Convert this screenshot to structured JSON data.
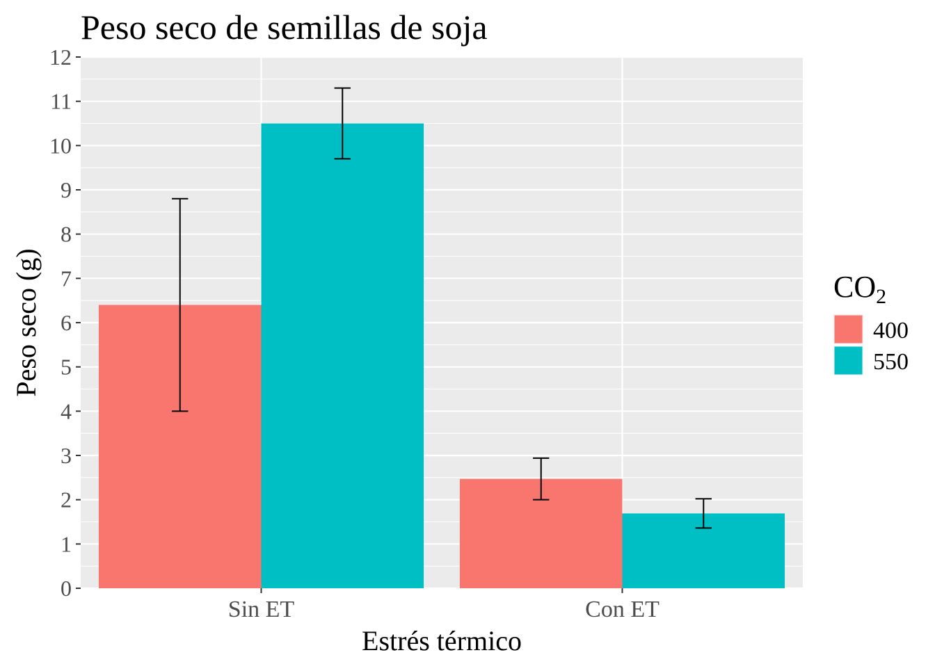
{
  "chart_data": {
    "type": "bar",
    "title": "Peso seco de semillas de soja",
    "xlabel": "Estrés térmico",
    "ylabel": "Peso seco (g)",
    "categories": [
      "Sin ET",
      "Con ET"
    ],
    "ylim": [
      0,
      12
    ],
    "yticks": [
      0,
      1,
      2,
      3,
      4,
      5,
      6,
      7,
      8,
      9,
      10,
      11,
      12
    ],
    "grid": true,
    "legend": {
      "title_main": "CO",
      "title_sub": "2",
      "position": "right"
    },
    "series": [
      {
        "name": "400",
        "color": "#F8766D",
        "values": [
          6.4,
          2.47
        ],
        "err_low": [
          4.0,
          2.0
        ],
        "err_high": [
          8.8,
          2.94
        ]
      },
      {
        "name": "550",
        "color": "#00BFC4",
        "values": [
          10.5,
          1.69
        ],
        "err_low": [
          9.7,
          1.36
        ],
        "err_high": [
          11.3,
          2.02
        ]
      }
    ]
  }
}
